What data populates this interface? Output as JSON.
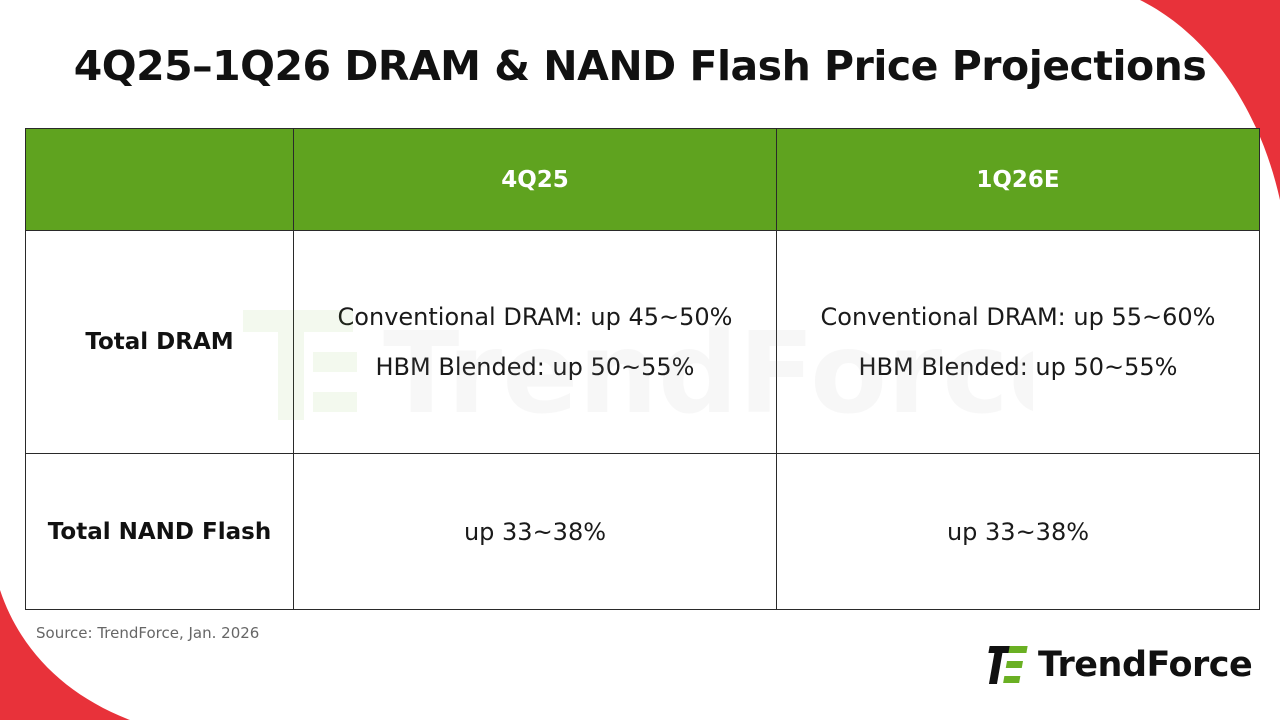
{
  "title": "4Q25–1Q26 DRAM & NAND Flash Price Projections",
  "colors": {
    "header_bg": "#5fa31f",
    "header_text": "#ffffff",
    "accent_red": "#e8323a",
    "logo_green": "#6ab023",
    "text": "#111111"
  },
  "chart_data": {
    "type": "table",
    "columns": [
      "",
      "4Q25",
      "1Q26E"
    ],
    "rows": [
      {
        "label": "Total DRAM",
        "cells": [
          [
            "Conventional DRAM: up 45~50%",
            "HBM Blended: up 50~55%"
          ],
          [
            "Conventional DRAM: up 55~60%",
            "HBM Blended: up 50~55%"
          ]
        ]
      },
      {
        "label": "Total NAND Flash",
        "cells": [
          [
            "up 33~38%"
          ],
          [
            "up 33~38%"
          ]
        ]
      }
    ]
  },
  "source": "Source: TrendForce, Jan. 2026",
  "logo": {
    "icon": "trendforce-logo-icon",
    "text": "TrendForce"
  },
  "watermark": {
    "text": "TrendForce"
  }
}
